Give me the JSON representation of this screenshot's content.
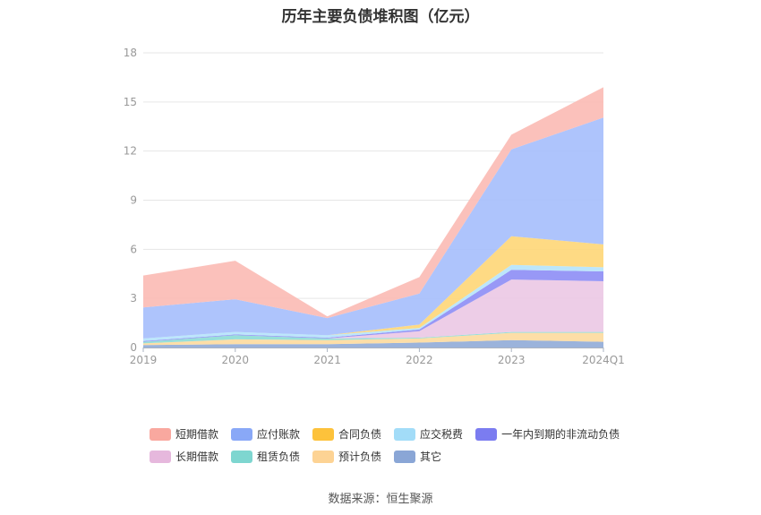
{
  "title": "历年主要负债堆积图（亿元）",
  "source": "数据来源：恒生聚源",
  "chart_data": {
    "type": "area",
    "stacked": true,
    "categories": [
      "2019",
      "2020",
      "2021",
      "2022",
      "2023",
      "2024Q1"
    ],
    "ylim": [
      0,
      18
    ],
    "yticks": [
      0,
      3,
      6,
      9,
      12,
      15,
      18
    ],
    "grid": true,
    "legend_position": "bottom",
    "series": [
      {
        "name": "其它",
        "color": "#93acd8",
        "values": [
          0.15,
          0.2,
          0.2,
          0.3,
          0.45,
          0.35
        ]
      },
      {
        "name": "预计负债",
        "color": "#fddba0",
        "values": [
          0.1,
          0.3,
          0.25,
          0.25,
          0.45,
          0.55
        ]
      },
      {
        "name": "租赁负债",
        "color": "#8fdcd6",
        "values": [
          0.1,
          0.25,
          0.1,
          0.05,
          0.05,
          0.05
        ]
      },
      {
        "name": "长期借款",
        "color": "#ecc9e5",
        "values": [
          0.0,
          0.0,
          0.0,
          0.4,
          3.2,
          3.1
        ]
      },
      {
        "name": "一年内到期的非流动负债",
        "color": "#8f8ff5",
        "values": [
          0.05,
          0.05,
          0.05,
          0.1,
          0.6,
          0.6
        ]
      },
      {
        "name": "应交税费",
        "color": "#b6e4fb",
        "values": [
          0.15,
          0.15,
          0.15,
          0.1,
          0.3,
          0.25
        ]
      },
      {
        "name": "合同负债",
        "color": "#fed77a",
        "values": [
          0.0,
          0.0,
          0.0,
          0.2,
          1.75,
          1.4
        ]
      },
      {
        "name": "应付账款",
        "color": "#a7bffc",
        "values": [
          1.9,
          2.0,
          1.05,
          1.9,
          5.3,
          7.75
        ]
      },
      {
        "name": "短期借款",
        "color": "#fbbcb5",
        "values": [
          1.95,
          2.35,
          0.1,
          1.0,
          0.9,
          1.85
        ]
      }
    ]
  },
  "legend": {
    "rows": [
      [
        {
          "label": "短期借款",
          "color": "#f9a89f"
        },
        {
          "label": "应付账款",
          "color": "#89a8f7"
        },
        {
          "label": "合同负债",
          "color": "#fdc23b"
        },
        {
          "label": "应交税费",
          "color": "#a2dcf8"
        },
        {
          "label": "一年内到期的非流动负债",
          "color": "#7b7cf0"
        }
      ],
      [
        {
          "label": "长期借款",
          "color": "#e6b8dd"
        },
        {
          "label": "租赁负债",
          "color": "#7ed6d0"
        },
        {
          "label": "预计负债",
          "color": "#fdd394"
        },
        {
          "label": "其它",
          "color": "#8aa6d6"
        }
      ]
    ]
  }
}
